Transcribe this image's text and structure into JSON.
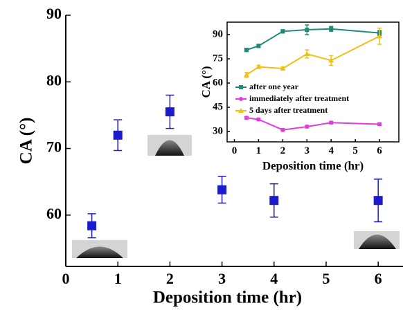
{
  "chart_data": [
    {
      "type": "scatter",
      "x_label": "Deposition time (hr)",
      "y_label": "CA (°)",
      "x": [
        0.5,
        1,
        2,
        3,
        4,
        6
      ],
      "values": [
        58.4,
        72,
        75.5,
        63.8,
        62.2,
        62.2
      ],
      "errors": [
        1.8,
        2.3,
        2.5,
        2,
        2.5,
        3.2
      ],
      "color": "#1c1ccc",
      "xlim": [
        0,
        6.45
      ],
      "ylim": [
        52.3,
        90
      ],
      "xticks": [
        0,
        1,
        2,
        3,
        4,
        5,
        6
      ],
      "yticks": [
        60,
        70,
        80,
        90
      ]
    },
    {
      "type": "line",
      "x_label": "Deposition time (hr)",
      "y_label": "CA (°)",
      "x": [
        0.5,
        1,
        2,
        3,
        4,
        6
      ],
      "series": [
        {
          "name": "after one year",
          "color": "#1f8a78",
          "values": [
            80.5,
            83,
            92,
            93,
            93.5,
            91
          ],
          "errors": [
            1,
            1,
            1,
            3,
            1.5,
            1.5
          ]
        },
        {
          "name": "immediately after treatment",
          "color": "#e03ae0",
          "values": [
            38.5,
            37.5,
            31,
            33,
            35.5,
            34.5
          ],
          "errors": [
            0.8,
            0.8,
            0.8,
            0.8,
            0.8,
            0.8
          ]
        },
        {
          "name": "5 days after treatment",
          "color": "#efbf1a",
          "values": [
            65,
            70,
            69,
            78,
            74,
            89
          ],
          "errors": [
            1.5,
            1,
            1,
            2.5,
            3,
            5
          ]
        }
      ],
      "xlim": [
        -0.3,
        6.8
      ],
      "ylim": [
        23.6,
        97.7
      ],
      "xticks": [
        0,
        1,
        2,
        3,
        4,
        5,
        6
      ],
      "yticks": [
        30,
        45,
        60,
        75,
        90
      ]
    }
  ]
}
